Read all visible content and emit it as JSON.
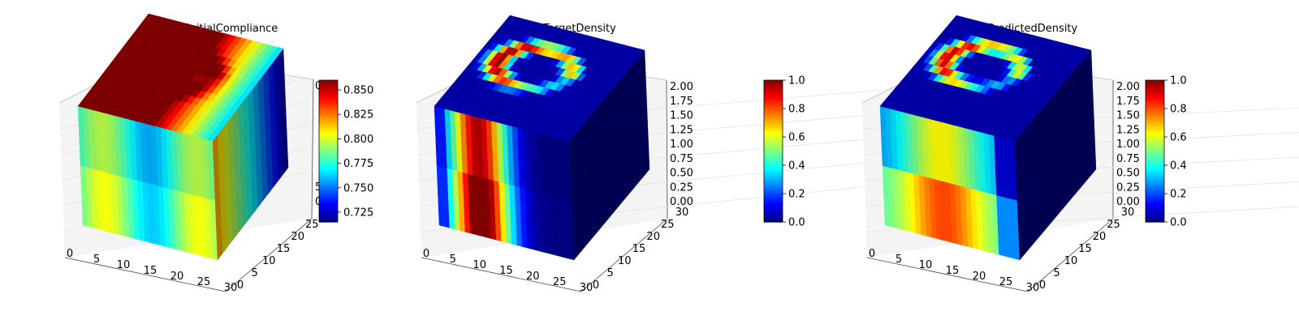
{
  "chart_data": [
    {
      "type": "voxel-3d",
      "title": "InitialCompliance",
      "field": "compliance",
      "x_ticks": [
        "0",
        "5",
        "10",
        "15",
        "20",
        "25",
        "30"
      ],
      "y_ticks": [
        "0",
        "5",
        "10",
        "15",
        "20",
        "25",
        "30"
      ],
      "z_ticks": [
        "0",
        "5",
        "",
        "",
        "",
        "",
        "",
        "",
        "0"
      ],
      "colorbar_ticks": [
        "0.725",
        "0.750",
        "0.775",
        "0.800",
        "0.825",
        "0.850"
      ],
      "colorbar_range": [
        0.715,
        0.86
      ],
      "colormap": "jet"
    },
    {
      "type": "voxel-3d",
      "title": "TargetDensity",
      "field": "target",
      "x_ticks": [
        "0",
        "5",
        "10",
        "15",
        "20",
        "25",
        "30"
      ],
      "y_ticks": [
        "0",
        "5",
        "10",
        "15",
        "20",
        "25",
        "30"
      ],
      "z_ticks": [
        "0.00",
        "0.25",
        "0.50",
        "0.75",
        "1.00",
        "1.25",
        "1.50",
        "1.75",
        "2.00"
      ],
      "colorbar_ticks": [
        "0.0",
        "0.2",
        "0.4",
        "0.6",
        "0.8",
        "1.0"
      ],
      "colorbar_range": [
        0,
        1
      ],
      "colormap": "jet"
    },
    {
      "type": "voxel-3d",
      "title": "PredictedDensity",
      "field": "predicted",
      "x_ticks": [
        "0",
        "5",
        "10",
        "15",
        "20",
        "25",
        "30"
      ],
      "y_ticks": [
        "0",
        "5",
        "10",
        "15",
        "20",
        "25",
        "30"
      ],
      "z_ticks": [
        "0.00",
        "0.25",
        "0.50",
        "0.75",
        "1.00",
        "1.25",
        "1.50",
        "1.75",
        "2.00"
      ],
      "colorbar_ticks": [
        "0.0",
        "0.2",
        "0.4",
        "0.6",
        "0.8",
        "1.0"
      ],
      "colorbar_range": [
        0,
        1
      ],
      "colormap": "jet"
    }
  ]
}
